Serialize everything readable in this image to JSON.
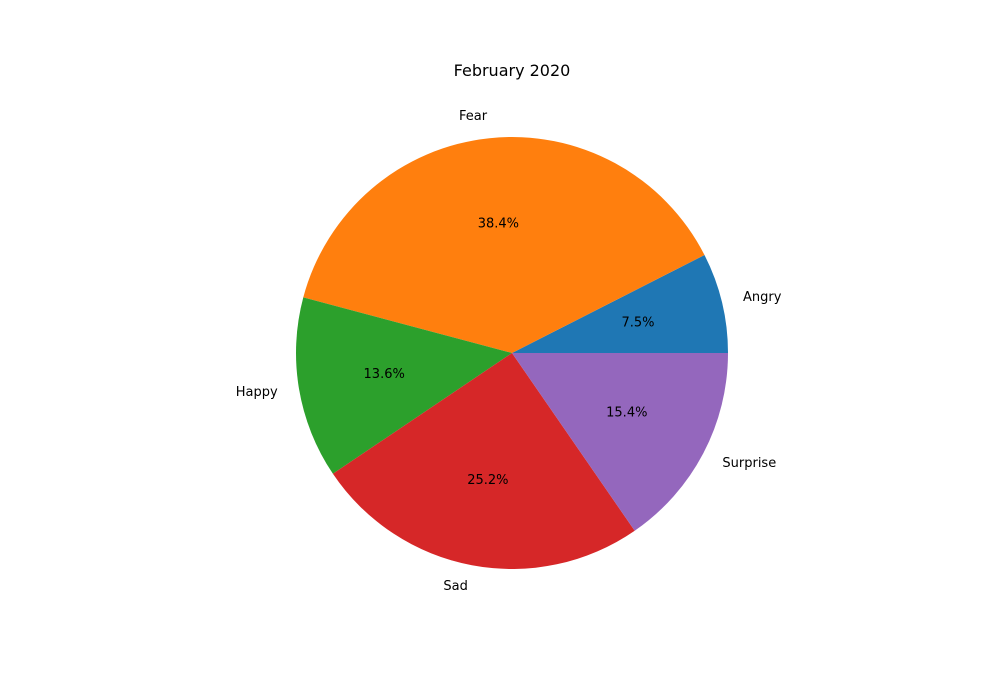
{
  "chart_data": {
    "type": "pie",
    "title": "February 2020",
    "categories": [
      "Angry",
      "Fear",
      "Happy",
      "Sad",
      "Surprise"
    ],
    "values": [
      7.5,
      38.4,
      13.6,
      25.2,
      15.4
    ],
    "value_labels": [
      "7.5%",
      "38.4%",
      "13.6%",
      "25.2%",
      "15.4%"
    ],
    "colors": [
      "#1f77b4",
      "#ff7f0e",
      "#2ca02c",
      "#d62728",
      "#9467bd"
    ],
    "start_angle_deg": 0,
    "direction": "counterclockwise",
    "legend": "none"
  }
}
